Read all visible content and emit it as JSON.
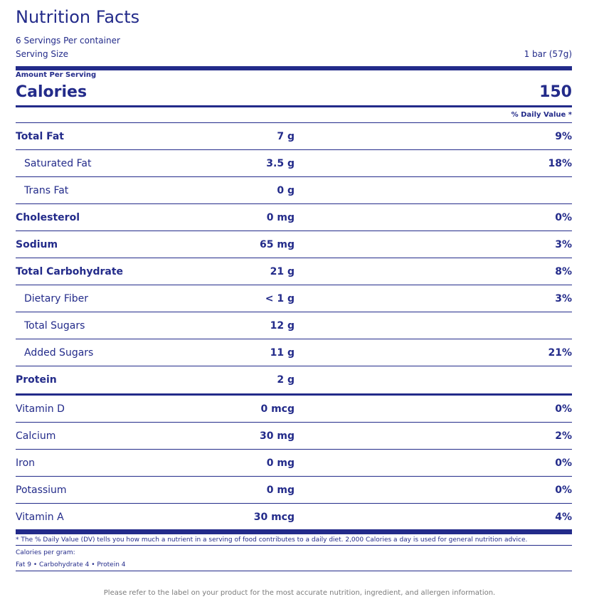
{
  "label": {
    "title": "Nutrition Facts",
    "servings_per_container": "6 Servings Per container",
    "serving_size_label": "Serving Size",
    "serving_size_value": "1 bar (57g)",
    "amount_per_serving": "Amount Per Serving",
    "calories_label": "Calories",
    "calories_value": "150",
    "daily_value_header": "% Daily Value *"
  },
  "nutrients": [
    {
      "name": "Total Fat",
      "amount": "7 g",
      "dv": "9%",
      "bold": true,
      "indent": false
    },
    {
      "name": "Saturated Fat",
      "amount": "3.5 g",
      "dv": "18%",
      "bold": false,
      "indent": true
    },
    {
      "name": "Trans Fat",
      "amount": "0 g",
      "dv": "",
      "bold": false,
      "indent": true
    },
    {
      "name": "Cholesterol",
      "amount": "0 mg",
      "dv": "0%",
      "bold": true,
      "indent": false
    },
    {
      "name": "Sodium",
      "amount": "65 mg",
      "dv": "3%",
      "bold": true,
      "indent": false
    },
    {
      "name": "Total Carbohydrate",
      "amount": "21 g",
      "dv": "8%",
      "bold": true,
      "indent": false
    },
    {
      "name": "Dietary Fiber",
      "amount": "< 1 g",
      "dv": "3%",
      "bold": false,
      "indent": true
    },
    {
      "name": "Total Sugars",
      "amount": "12 g",
      "dv": "",
      "bold": false,
      "indent": true
    },
    {
      "name": "Added Sugars",
      "amount": "11 g",
      "dv": "21%",
      "bold": false,
      "indent": true
    },
    {
      "name": "Protein",
      "amount": "2 g",
      "dv": "",
      "bold": true,
      "indent": false
    }
  ],
  "vitamins": [
    {
      "name": "Vitamin D",
      "amount": "0 mcg",
      "dv": "0%"
    },
    {
      "name": "Calcium",
      "amount": "30 mg",
      "dv": "2%"
    },
    {
      "name": "Iron",
      "amount": "0 mg",
      "dv": "0%"
    },
    {
      "name": "Potassium",
      "amount": "0 mg",
      "dv": "0%"
    },
    {
      "name": "Vitamin A",
      "amount": "30 mcg",
      "dv": "4%"
    }
  ],
  "footnote": {
    "daily_value_note": "* The % Daily Value (DV) tells you how much a nutrient in a serving of food contributes to a daily diet. 2,000 Calories a day is used for general nutrition advice.",
    "calories_per_gram_label": "Calories per gram:",
    "calories_per_gram_values": "Fat 9 • Carbohydrate 4 • Protein 4"
  },
  "disclaimer": "Please refer to the label on your product for the most accurate nutrition, ingredient, and allergen information.",
  "colors": {
    "primary": "#232b8a",
    "disclaimer_text": "#7a7a7a"
  }
}
